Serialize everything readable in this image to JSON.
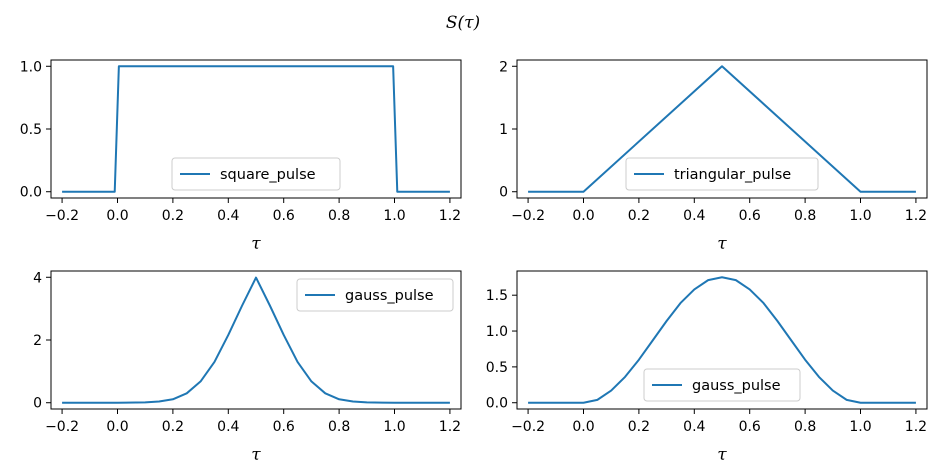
{
  "figure": {
    "title": "S(τ)"
  },
  "chart_data": [
    {
      "type": "line",
      "xlabel": "τ",
      "ylabel": "",
      "xlim": [
        -0.24,
        1.24
      ],
      "ylim": [
        -0.05,
        1.05
      ],
      "xticks": [
        -0.2,
        0.0,
        0.2,
        0.4,
        0.6,
        0.8,
        1.0,
        1.2
      ],
      "xtick_labels": [
        "−0.2",
        "0.0",
        "0.2",
        "0.4",
        "0.6",
        "0.8",
        "1.0",
        "1.2"
      ],
      "yticks": [
        0.0,
        0.5,
        1.0
      ],
      "ytick_labels": [
        "0.0",
        "0.5",
        "1.0"
      ],
      "legend_position": "lower center",
      "series": [
        {
          "name": "square_pulse",
          "color": "#1f77b4",
          "x": [
            -0.2,
            -0.01,
            0.005,
            0.995,
            1.01,
            1.2
          ],
          "y": [
            0,
            0,
            1,
            1,
            0,
            0
          ]
        }
      ]
    },
    {
      "type": "line",
      "xlabel": "τ",
      "ylabel": "",
      "xlim": [
        -0.24,
        1.24
      ],
      "ylim": [
        -0.1,
        2.1
      ],
      "xticks": [
        -0.2,
        0.0,
        0.2,
        0.4,
        0.6,
        0.8,
        1.0,
        1.2
      ],
      "xtick_labels": [
        "−0.2",
        "0.0",
        "0.2",
        "0.4",
        "0.6",
        "0.8",
        "1.0",
        "1.2"
      ],
      "yticks": [
        0,
        1,
        2
      ],
      "ytick_labels": [
        "0",
        "1",
        "2"
      ],
      "legend_position": "lower center",
      "series": [
        {
          "name": "triangular_pulse",
          "color": "#1f77b4",
          "x": [
            -0.2,
            0.0,
            0.5,
            1.0,
            1.2
          ],
          "y": [
            0,
            0,
            2,
            0,
            0
          ]
        }
      ]
    },
    {
      "type": "line",
      "xlabel": "τ",
      "ylabel": "",
      "xlim": [
        -0.24,
        1.24
      ],
      "ylim": [
        -0.2,
        4.2
      ],
      "xticks": [
        -0.2,
        0.0,
        0.2,
        0.4,
        0.6,
        0.8,
        1.0,
        1.2
      ],
      "xtick_labels": [
        "−0.2",
        "0.0",
        "0.2",
        "0.4",
        "0.6",
        "0.8",
        "1.0",
        "1.2"
      ],
      "yticks": [
        0,
        2,
        4
      ],
      "ytick_labels": [
        "0",
        "2",
        "4"
      ],
      "legend_position": "upper right",
      "series": [
        {
          "name": "gauss_pulse",
          "color": "#1f77b4",
          "x": [
            -0.2,
            -0.1,
            0.0,
            0.1,
            0.15,
            0.2,
            0.25,
            0.3,
            0.35,
            0.4,
            0.45,
            0.5,
            0.55,
            0.6,
            0.65,
            0.7,
            0.75,
            0.8,
            0.85,
            0.9,
            1.0,
            1.1,
            1.2
          ],
          "y": [
            0,
            0,
            0,
            0.01,
            0.04,
            0.11,
            0.3,
            0.68,
            1.3,
            2.16,
            3.1,
            3.99,
            3.1,
            2.16,
            1.3,
            0.68,
            0.3,
            0.11,
            0.04,
            0.01,
            0,
            0,
            0
          ]
        }
      ]
    },
    {
      "type": "line",
      "xlabel": "τ",
      "ylabel": "",
      "xlim": [
        -0.24,
        1.24
      ],
      "ylim": [
        -0.0875,
        1.8375
      ],
      "xticks": [
        -0.2,
        0.0,
        0.2,
        0.4,
        0.6,
        0.8,
        1.0,
        1.2
      ],
      "xtick_labels": [
        "−0.2",
        "0.0",
        "0.2",
        "0.4",
        "0.6",
        "0.8",
        "1.0",
        "1.2"
      ],
      "yticks": [
        0.0,
        0.5,
        1.0,
        1.5
      ],
      "ytick_labels": [
        "0.0",
        "0.5",
        "1.0",
        "1.5"
      ],
      "legend_position": "lower center",
      "series": [
        {
          "name": "gauss_pulse",
          "color": "#1f77b4",
          "x": [
            -0.2,
            0.0,
            0.05,
            0.1,
            0.15,
            0.2,
            0.25,
            0.3,
            0.35,
            0.4,
            0.45,
            0.5,
            0.55,
            0.6,
            0.65,
            0.7,
            0.75,
            0.8,
            0.85,
            0.9,
            0.95,
            1.0,
            1.2
          ],
          "y": [
            0,
            0,
            0.04,
            0.17,
            0.36,
            0.6,
            0.87,
            1.14,
            1.39,
            1.58,
            1.71,
            1.75,
            1.71,
            1.58,
            1.39,
            1.14,
            0.87,
            0.6,
            0.36,
            0.17,
            0.04,
            0,
            0
          ]
        }
      ]
    }
  ]
}
